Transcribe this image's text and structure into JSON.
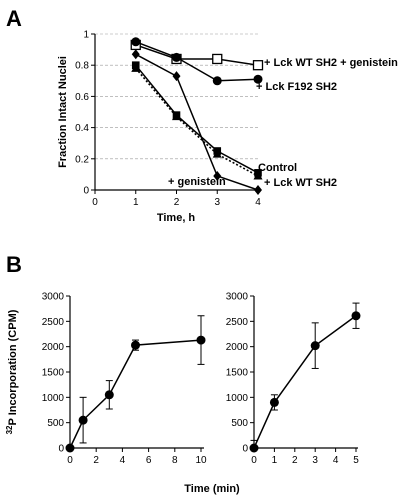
{
  "panel_labels": {
    "a": "A",
    "b": "B"
  },
  "panel_a": {
    "ylabel": "Fraction Intact Nuclei",
    "xlabel": "Time, h",
    "annotations": {
      "wt_genistein": "+ Lck WT SH2 + genistein",
      "f192": "+ Lck F192 SH2",
      "control": "Control",
      "wt": "+ Lck WT SH2",
      "genistein": "+ genistein"
    }
  },
  "panel_b": {
    "ylabel_sup": "32",
    "ylabel_rest": "P Incorporation (CPM)",
    "xlabel": "Time (min)"
  },
  "chart_data": [
    {
      "type": "line",
      "xlim": [
        0,
        4
      ],
      "ylim": [
        0,
        1
      ],
      "xticks": [
        0,
        1,
        2,
        3,
        4
      ],
      "yticks": [
        0,
        0.2,
        0.4,
        0.6,
        0.8,
        1
      ],
      "xtick_labels": [
        "0",
        "1",
        "2",
        "3",
        "4"
      ],
      "ytick_labels": [
        "0",
        "0.2",
        "0.4",
        "0.6",
        "0.8",
        "1"
      ],
      "series": [
        {
          "name": "+ Lck WT SH2 + genistein",
          "marker": "open-square",
          "dash": "solid",
          "x": [
            1,
            2,
            3,
            4
          ],
          "y": [
            0.93,
            0.84,
            0.84,
            0.8
          ]
        },
        {
          "name": "+ Lck F192 SH2",
          "marker": "filled-circle",
          "dash": "solid",
          "x": [
            1,
            2,
            3,
            4
          ],
          "y": [
            0.95,
            0.85,
            0.7,
            0.71
          ]
        },
        {
          "name": "+ genistein",
          "marker": "filled-diamond",
          "dash": "solid",
          "x": [
            1,
            2,
            3,
            4
          ],
          "y": [
            0.87,
            0.73,
            0.09,
            0.0
          ]
        },
        {
          "name": "Control",
          "marker": "filled-square",
          "dash": "solid",
          "x": [
            1,
            2,
            3,
            4
          ],
          "y": [
            0.8,
            0.48,
            0.25,
            0.11
          ]
        },
        {
          "name": "+ Lck WT SH2",
          "marker": "filled-triangle",
          "dash": "dotted",
          "x": [
            1,
            2,
            3,
            4
          ],
          "y": [
            0.78,
            0.47,
            0.23,
            0.09
          ]
        }
      ]
    },
    {
      "type": "line",
      "xlim": [
        0,
        10
      ],
      "ylim": [
        0,
        3000
      ],
      "xticks": [
        0,
        2,
        4,
        6,
        8,
        10
      ],
      "yticks": [
        0,
        500,
        1000,
        1500,
        2000,
        2500,
        3000
      ],
      "xtick_labels": [
        "0",
        "2",
        "4",
        "6",
        "8",
        "10"
      ],
      "ytick_labels": [
        "0",
        "500",
        "1000",
        "1500",
        "2000",
        "2500",
        "3000"
      ],
      "series": [
        {
          "marker": "filled-circle",
          "x": [
            0,
            1,
            3,
            5,
            10
          ],
          "y": [
            0,
            550,
            1050,
            2030,
            2130
          ],
          "err": [
            0,
            450,
            280,
            100,
            480
          ]
        }
      ]
    },
    {
      "type": "line",
      "xlim": [
        0,
        5
      ],
      "ylim": [
        0,
        3000
      ],
      "xticks": [
        0,
        1,
        2,
        3,
        4,
        5
      ],
      "yticks": [
        0,
        500,
        1000,
        1500,
        2000,
        2500,
        3000
      ],
      "xtick_labels": [
        "0",
        "1",
        "2",
        "3",
        "4",
        "5"
      ],
      "ytick_labels": [
        "0",
        "500",
        "1000",
        "1500",
        "2000",
        "2500",
        "3000"
      ],
      "series": [
        {
          "marker": "filled-circle",
          "x": [
            0,
            1,
            3,
            5
          ],
          "y": [
            0,
            900,
            2020,
            2610
          ],
          "err": [
            150,
            150,
            450,
            250
          ]
        }
      ]
    }
  ]
}
